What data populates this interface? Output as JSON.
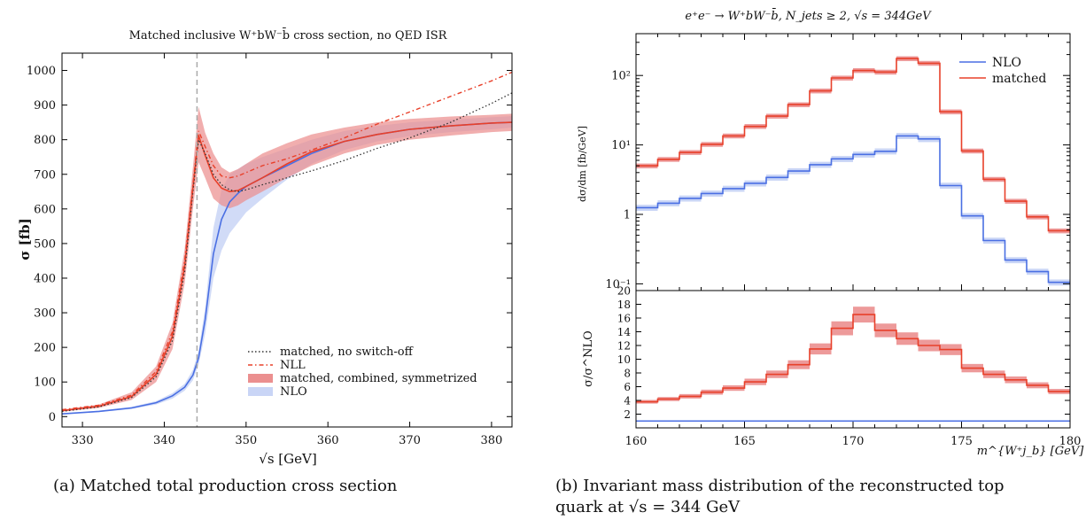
{
  "captions": {
    "a": "(a) Matched total production cross section",
    "b_line1": "(b) Invariant mass distribution of the reconstructed top",
    "b_line2": "quark at √s = 344 GeV"
  },
  "colors": {
    "red": "#e8402a",
    "red_band": "#eb8f8f",
    "purple_band": "#b08aa9",
    "blue": "#4a6fe3",
    "blue_band": "#c9d5f6",
    "dotted": "#333333",
    "guide": "#aaaaaa"
  },
  "chart_data": [
    {
      "type": "line",
      "title": "Matched inclusive W⁺bW⁻b̄ cross section, no QED ISR",
      "xlabel": "√s [GeV]",
      "ylabel": "σ [fb]",
      "xlim": [
        327.5,
        382.5
      ],
      "ylim": [
        -30,
        1050
      ],
      "xticks": [
        330,
        340,
        350,
        360,
        370,
        380
      ],
      "yticks": [
        0,
        100,
        200,
        300,
        400,
        500,
        600,
        700,
        800,
        900,
        1000
      ],
      "vline": 344,
      "legend_position": "lower-right",
      "series": [
        {
          "name": "matched, no switch-off",
          "style": "dotted",
          "x": [
            327.5,
            332,
            336,
            339,
            341,
            342.5,
            343.5,
            344.2,
            345,
            346,
            347,
            348,
            349,
            350,
            352,
            355,
            358,
            362,
            366,
            370,
            375,
            380,
            382.5
          ],
          "y": [
            15,
            28,
            55,
            115,
            220,
            420,
            650,
            800,
            760,
            700,
            670,
            655,
            650,
            655,
            670,
            690,
            710,
            740,
            775,
            805,
            850,
            905,
            935
          ]
        },
        {
          "name": "NLL",
          "style": "dashdot",
          "x": [
            327.5,
            332,
            336,
            339,
            341,
            342.5,
            343.5,
            344.2,
            345,
            346,
            347,
            348,
            349,
            350,
            352,
            355,
            358,
            362,
            366,
            370,
            375,
            380,
            382.5
          ],
          "y": [
            20,
            33,
            62,
            130,
            245,
            450,
            670,
            825,
            780,
            725,
            695,
            690,
            695,
            705,
            725,
            745,
            770,
            805,
            845,
            880,
            925,
            970,
            995
          ]
        },
        {
          "name": "matched, combined, symmetrized",
          "style": "band",
          "x": [
            327.5,
            332,
            336,
            339,
            341,
            342.5,
            343.5,
            344.2,
            345,
            346,
            347,
            348,
            349,
            350,
            352,
            355,
            358,
            362,
            366,
            370,
            375,
            380,
            382.5
          ],
          "center": [
            17,
            30,
            58,
            122,
            232,
            435,
            660,
            812,
            755,
            690,
            660,
            650,
            653,
            665,
            690,
            730,
            765,
            795,
            815,
            830,
            840,
            848,
            850
          ],
          "lower": [
            14,
            25,
            48,
            100,
            195,
            385,
            600,
            735,
            690,
            630,
            610,
            602,
            610,
            625,
            650,
            690,
            725,
            760,
            785,
            800,
            812,
            822,
            825
          ],
          "upper": [
            20,
            35,
            70,
            145,
            270,
            485,
            720,
            895,
            820,
            760,
            720,
            705,
            715,
            730,
            760,
            790,
            815,
            835,
            850,
            860,
            867,
            872,
            875
          ]
        },
        {
          "name": "NLO",
          "style": "band",
          "x": [
            327.5,
            332,
            336,
            339,
            341,
            342.5,
            343.5,
            344.2,
            345,
            346,
            347,
            348,
            349,
            350,
            352,
            355,
            358,
            362,
            366,
            370,
            375,
            380,
            382.5
          ],
          "center": [
            8,
            15,
            25,
            40,
            60,
            85,
            120,
            170,
            280,
            470,
            570,
            620,
            645,
            665,
            690,
            725,
            760,
            795,
            815,
            830,
            840,
            848,
            850
          ],
          "lower": [
            7,
            13,
            22,
            35,
            52,
            75,
            105,
            150,
            240,
            400,
            480,
            530,
            560,
            590,
            630,
            685,
            730,
            770,
            795,
            810,
            822,
            830,
            835
          ],
          "upper": [
            9,
            17,
            28,
            45,
            68,
            95,
            135,
            190,
            315,
            545,
            655,
            700,
            715,
            730,
            750,
            775,
            800,
            825,
            840,
            850,
            858,
            865,
            868
          ]
        }
      ]
    },
    {
      "type": "line",
      "title": "e⁺e⁻ → W⁺bW⁻b̄, N_jets ≥ 2,     √s = 344GeV",
      "xlabel": "m^{W⁺j_b} [GeV]",
      "ylabel": "dσ/dm [fb/GeV]",
      "ratio_ylabel": "σ/σ^NLO",
      "xlim": [
        160,
        180
      ],
      "xticks": [
        160,
        165,
        170,
        175,
        180
      ],
      "yscale": "log",
      "ylim": [
        0.08,
        400
      ],
      "ytick_labels": [
        "10⁻¹",
        "1",
        "10¹",
        "10²"
      ],
      "ytick_values": [
        0.1,
        1,
        10,
        100
      ],
      "ratio_ylim": [
        0,
        20
      ],
      "ratio_yticks": [
        2,
        4,
        6,
        8,
        10,
        12,
        14,
        16,
        18,
        20
      ],
      "legend_position": "top-right",
      "bin_edges": [
        160,
        161,
        162,
        163,
        164,
        165,
        166,
        167,
        168,
        169,
        170,
        171,
        172,
        173,
        174,
        175,
        176,
        177,
        178,
        179,
        180
      ],
      "series": [
        {
          "name": "NLO",
          "values": [
            1.25,
            1.45,
            1.7,
            2.0,
            2.35,
            2.8,
            3.4,
            4.2,
            5.2,
            6.3,
            7.3,
            8.1,
            13.5,
            12.2,
            2.6,
            0.95,
            0.42,
            0.22,
            0.15,
            0.105
          ]
        },
        {
          "name": "matched",
          "values": [
            5.0,
            6.2,
            7.8,
            10.2,
            13.5,
            18.5,
            26,
            38,
            60,
            92,
            118,
            112,
            175,
            150,
            30,
            8.2,
            3.2,
            1.55,
            0.92,
            0.58
          ]
        }
      ],
      "ratio": {
        "name": "matched/NLO",
        "values": [
          3.8,
          4.2,
          4.6,
          5.2,
          5.8,
          6.7,
          7.8,
          9.2,
          11.5,
          14.5,
          16.5,
          14.2,
          13.0,
          12.0,
          11.4,
          8.7,
          7.8,
          7.0,
          6.2,
          5.3
        ]
      }
    }
  ]
}
